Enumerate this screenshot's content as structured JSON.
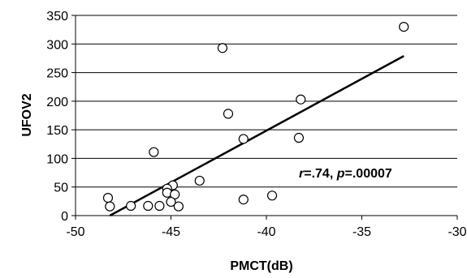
{
  "chart_data": {
    "type": "scatter",
    "xlabel": "PMCT(dB)",
    "ylabel": "UFOV2",
    "xlim": [
      -50,
      -30
    ],
    "ylim": [
      0,
      350
    ],
    "xticks": [
      -50,
      -45,
      -40,
      -35,
      -30
    ],
    "xtick_labels": [
      "-50",
      "-45",
      "-40",
      "-35",
      "-30"
    ],
    "yticks": [
      0,
      50,
      100,
      150,
      200,
      250,
      300,
      350
    ],
    "ytick_labels": [
      "0",
      "50",
      "100",
      "150",
      "200",
      "250",
      "300",
      "350"
    ],
    "grid": "horizontal",
    "legend": "none",
    "points": [
      {
        "x": -32.8,
        "y": 330
      },
      {
        "x": -42.3,
        "y": 293
      },
      {
        "x": -38.2,
        "y": 203
      },
      {
        "x": -42.0,
        "y": 178
      },
      {
        "x": -38.3,
        "y": 136
      },
      {
        "x": -41.2,
        "y": 134
      },
      {
        "x": -45.9,
        "y": 111
      },
      {
        "x": -43.5,
        "y": 61
      },
      {
        "x": -44.9,
        "y": 53
      },
      {
        "x": -45.2,
        "y": 47
      },
      {
        "x": -45.2,
        "y": 40
      },
      {
        "x": -44.8,
        "y": 37
      },
      {
        "x": -39.7,
        "y": 35
      },
      {
        "x": -48.3,
        "y": 31
      },
      {
        "x": -41.2,
        "y": 28
      },
      {
        "x": -45.0,
        "y": 24
      },
      {
        "x": -48.2,
        "y": 16
      },
      {
        "x": -47.1,
        "y": 17
      },
      {
        "x": -46.2,
        "y": 17
      },
      {
        "x": -45.6,
        "y": 17
      },
      {
        "x": -44.6,
        "y": 16
      }
    ],
    "trendline": {
      "x": [
        -48.2,
        -32.8
      ],
      "y": [
        0,
        279
      ]
    },
    "annotation": {
      "r_symbol": "r",
      "r_value": "=.74, ",
      "p_symbol": "p",
      "p_value": "=.00007"
    },
    "colors": {
      "marker_stroke": "#000000",
      "marker_fill": "#ffffff",
      "trendline": "#000000",
      "grid": "#000000",
      "background": "#ffffff"
    }
  }
}
